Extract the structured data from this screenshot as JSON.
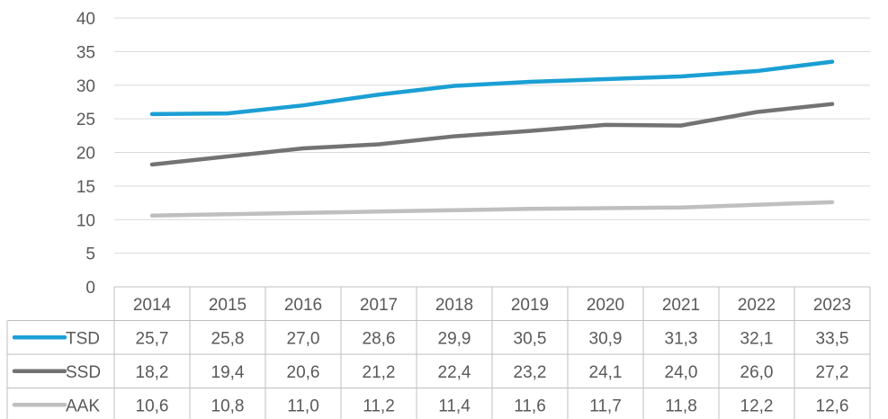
{
  "chart_data": {
    "type": "line",
    "categories": [
      "2014",
      "2015",
      "2016",
      "2017",
      "2018",
      "2019",
      "2020",
      "2021",
      "2022",
      "2023"
    ],
    "series": [
      {
        "name": "TSD",
        "color": "#1b9fd4",
        "values": [
          25.7,
          25.8,
          27.0,
          28.6,
          29.9,
          30.5,
          30.9,
          31.3,
          32.1,
          33.5
        ],
        "labels": [
          "25,7",
          "25,8",
          "27,0",
          "28,6",
          "29,9",
          "30,5",
          "30,9",
          "31,3",
          "32,1",
          "33,5"
        ]
      },
      {
        "name": "SSD",
        "color": "#737373",
        "values": [
          18.2,
          19.4,
          20.6,
          21.2,
          22.4,
          23.2,
          24.1,
          24.0,
          26.0,
          27.2
        ],
        "labels": [
          "18,2",
          "19,4",
          "20,6",
          "21,2",
          "22,4",
          "23,2",
          "24,1",
          "24,0",
          "26,0",
          "27,2"
        ]
      },
      {
        "name": "AAK",
        "color": "#bfbfbf",
        "values": [
          10.6,
          10.8,
          11.0,
          11.2,
          11.4,
          11.6,
          11.7,
          11.8,
          12.2,
          12.6
        ],
        "labels": [
          "10,6",
          "10,8",
          "11,0",
          "11,2",
          "11,4",
          "11,6",
          "11,7",
          "11,8",
          "12,2",
          "12,6"
        ]
      }
    ],
    "title": "",
    "xlabel": "",
    "ylabel": "",
    "ylim": [
      0,
      40
    ],
    "yticks": [
      0,
      5,
      10,
      15,
      20,
      25,
      30,
      35,
      40
    ],
    "grid": true,
    "legend": "data-table"
  }
}
